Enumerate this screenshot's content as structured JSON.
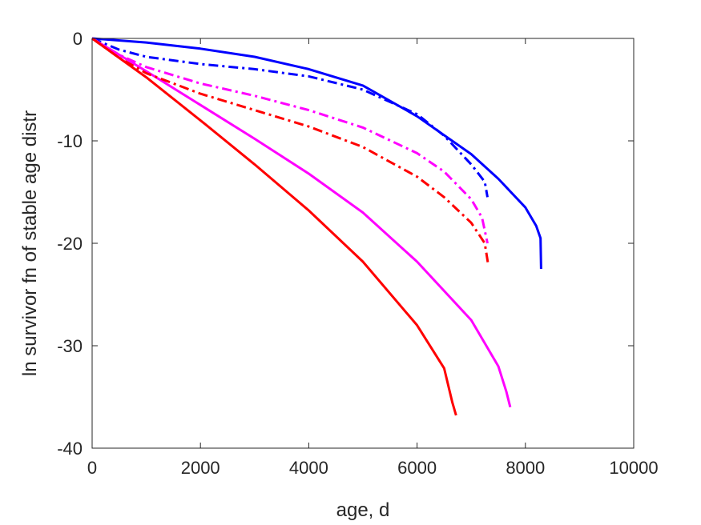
{
  "chart_data": {
    "type": "line",
    "title": "",
    "xlabel": "age, d",
    "ylabel": "ln survivor fn of stable age distr",
    "xlim": [
      0,
      10000
    ],
    "ylim": [
      -40,
      0
    ],
    "xticks": [
      0,
      2000,
      4000,
      6000,
      8000,
      10000
    ],
    "yticks": [
      -40,
      -30,
      -20,
      -10,
      0
    ],
    "xtick_labels": [
      "0",
      "2000",
      "4000",
      "6000",
      "8000",
      "10000"
    ],
    "ytick_labels": [
      "-40",
      "-30",
      "-20",
      "-10",
      "0"
    ],
    "grid": false,
    "legend": "none",
    "series": [
      {
        "color": "#0000ff",
        "style": "solid",
        "points": [
          [
            0,
            0
          ],
          [
            1000,
            -0.4
          ],
          [
            2000,
            -1.0
          ],
          [
            3000,
            -1.8
          ],
          [
            4000,
            -3.0
          ],
          [
            5000,
            -4.6
          ],
          [
            6000,
            -7.6
          ],
          [
            7000,
            -11.3
          ],
          [
            7500,
            -13.7
          ],
          [
            8000,
            -16.5
          ],
          [
            8200,
            -18.3
          ],
          [
            8280,
            -19.5
          ],
          [
            8290,
            -22.5
          ]
        ]
      },
      {
        "color": "#0000ff",
        "style": "dashdot",
        "points": [
          [
            0,
            0
          ],
          [
            500,
            -1.1
          ],
          [
            1000,
            -1.8
          ],
          [
            2000,
            -2.5
          ],
          [
            3000,
            -3.0
          ],
          [
            4000,
            -3.7
          ],
          [
            5000,
            -5.0
          ],
          [
            6000,
            -7.4
          ],
          [
            6500,
            -9.5
          ],
          [
            7000,
            -12.3
          ],
          [
            7250,
            -14.0
          ],
          [
            7300,
            -15.5
          ]
        ]
      },
      {
        "color": "#ff00ff",
        "style": "solid",
        "points": [
          [
            0,
            0
          ],
          [
            1000,
            -3.2
          ],
          [
            2000,
            -6.5
          ],
          [
            3000,
            -9.8
          ],
          [
            4000,
            -13.2
          ],
          [
            5000,
            -17.0
          ],
          [
            6000,
            -21.8
          ],
          [
            7000,
            -27.5
          ],
          [
            7500,
            -32.0
          ],
          [
            7650,
            -34.5
          ],
          [
            7720,
            -36.0
          ]
        ]
      },
      {
        "color": "#ff00ff",
        "style": "dashdot",
        "points": [
          [
            0,
            0
          ],
          [
            500,
            -1.6
          ],
          [
            1000,
            -2.8
          ],
          [
            2000,
            -4.4
          ],
          [
            3000,
            -5.6
          ],
          [
            4000,
            -7.0
          ],
          [
            5000,
            -8.7
          ],
          [
            6000,
            -11.2
          ],
          [
            6500,
            -13.0
          ],
          [
            7000,
            -15.7
          ],
          [
            7200,
            -17.5
          ],
          [
            7300,
            -20.0
          ]
        ]
      },
      {
        "color": "#ff0000",
        "style": "solid",
        "points": [
          [
            0,
            0
          ],
          [
            1000,
            -3.8
          ],
          [
            2000,
            -8.0
          ],
          [
            3000,
            -12.3
          ],
          [
            4000,
            -16.8
          ],
          [
            5000,
            -21.8
          ],
          [
            6000,
            -28.0
          ],
          [
            6500,
            -32.2
          ],
          [
            6650,
            -35.5
          ],
          [
            6720,
            -36.8
          ]
        ]
      },
      {
        "color": "#ff0000",
        "style": "dashdot",
        "points": [
          [
            0,
            0
          ],
          [
            500,
            -1.9
          ],
          [
            1000,
            -3.4
          ],
          [
            2000,
            -5.4
          ],
          [
            3000,
            -7.0
          ],
          [
            4000,
            -8.6
          ],
          [
            5000,
            -10.6
          ],
          [
            6000,
            -13.5
          ],
          [
            6500,
            -15.5
          ],
          [
            7000,
            -18.0
          ],
          [
            7250,
            -20.0
          ],
          [
            7310,
            -22.0
          ]
        ]
      }
    ]
  }
}
